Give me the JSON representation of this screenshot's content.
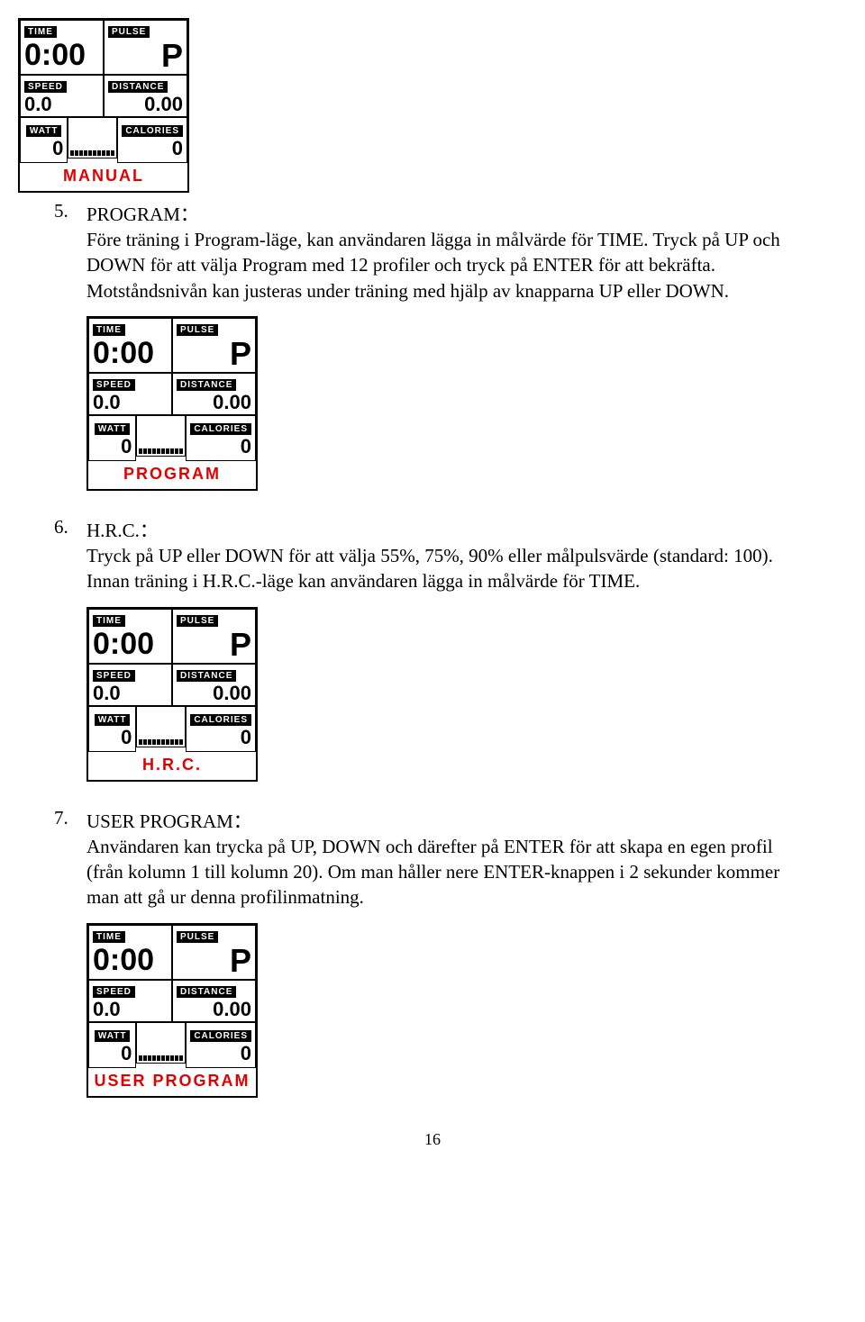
{
  "display_labels": {
    "time": "TIME",
    "pulse": "PULSE",
    "speed": "SPEED",
    "distance": "DISTANCE",
    "watt": "WATT",
    "calories": "CALORIES"
  },
  "display_values": {
    "time": "0:00",
    "pulse": "P",
    "speed": "0.0",
    "distance": "0.00",
    "watt": "0",
    "calories": "0"
  },
  "modes": {
    "manual": "MANUAL",
    "program": "PROGRAM",
    "hrc": "H.R.C.",
    "user": "USER PROGRAM"
  },
  "sections": {
    "s5": {
      "num": "5.",
      "title": "PROGRAM：",
      "body": "Före träning i Program-läge, kan användaren lägga in målvärde för TIME. Tryck på UP och DOWN för att välja Program med 12 profiler och tryck på ENTER för att bekräfta. Motståndsnivån kan justeras under träning med hjälp av knapparna UP eller DOWN."
    },
    "s6": {
      "num": "6.",
      "title": "H.R.C.：",
      "body": "Tryck på UP eller DOWN för att välja 55%, 75%, 90% eller målpulsvärde (standard: 100). Innan träning i H.R.C.-läge kan användaren lägga in målvärde för TIME."
    },
    "s7": {
      "num": "7.",
      "title": "USER PROGRAM：",
      "body": "Användaren kan trycka på UP, DOWN och därefter på ENTER för att skapa en egen profil (från kolumn 1 till kolumn 20). Om man håller nere ENTER-knappen i 2 sekunder kommer man att gå ur denna profilinmatning."
    }
  },
  "page_number": "16",
  "colors": {
    "mode_text": "#e30000",
    "text": "#000000",
    "background": "#ffffff"
  }
}
